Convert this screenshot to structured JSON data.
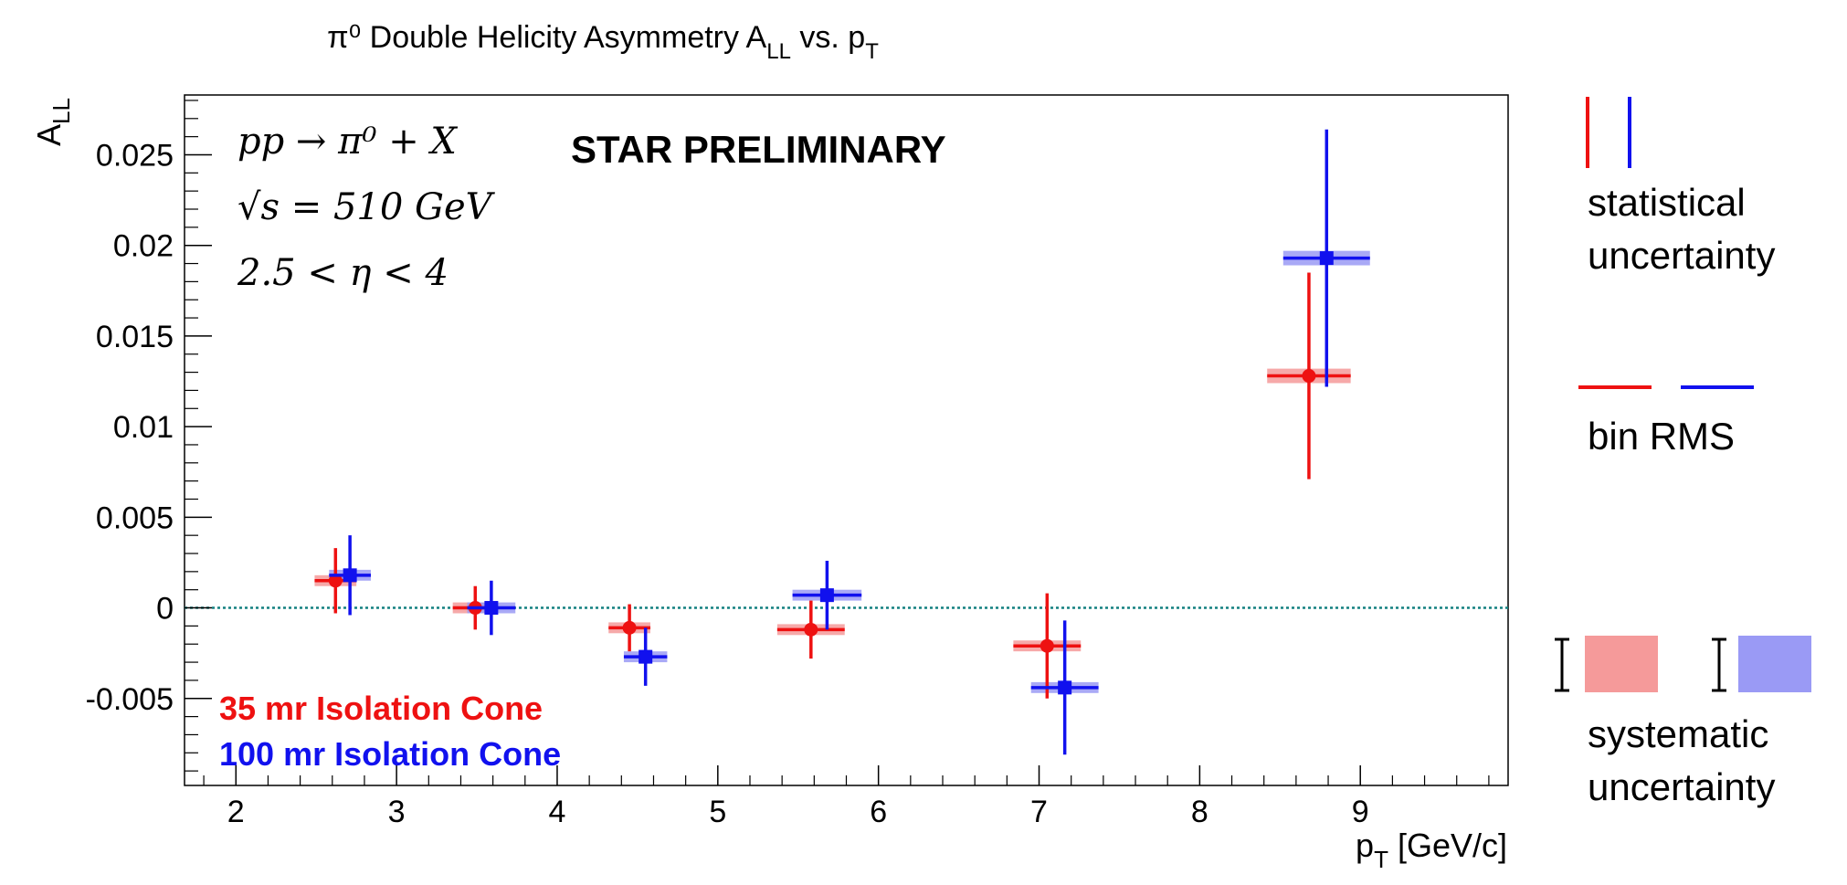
{
  "chart_data": {
    "type": "scatter",
    "title": {
      "main": "π⁰ Double Helicity Asymmetry A",
      "sub": "LL",
      "tail": " vs. p",
      "tail_sub": "T"
    },
    "xlabel": {
      "main": "p",
      "sub": "T",
      "rest": " [GeV/c]"
    },
    "ylabel": {
      "main": "A",
      "sub": "LL"
    },
    "xlim": [
      1.68,
      9.92
    ],
    "ylim": [
      -0.0098,
      0.0283
    ],
    "x_ticks": [
      2,
      3,
      4,
      5,
      6,
      7,
      8,
      9
    ],
    "x_tick_labels": [
      "2",
      "3",
      "4",
      "5",
      "6",
      "7",
      "8",
      "9"
    ],
    "y_ticks": [
      -0.005,
      0,
      0.005,
      0.01,
      0.015,
      0.02,
      0.025
    ],
    "y_tick_labels": [
      "-0.005",
      "0",
      "0.005",
      "0.01",
      "0.015",
      "0.02",
      "0.025"
    ],
    "zero_line": true,
    "grid": false,
    "annotations": {
      "process": "pp → π⁰ + X",
      "energy": "√s = 510 GeV",
      "eta_range": "2.5 < η < 4",
      "preliminary": "STAR PRELIMINARY"
    },
    "series": [
      {
        "name": "35 mr Isolation Cone",
        "color": "#ee1111",
        "sys_color": "#f59a9a",
        "marker": "circle",
        "points": [
          {
            "x": 2.62,
            "y": 0.0015,
            "stat": 0.0018,
            "rms": 0.26,
            "sys": 0.0003
          },
          {
            "x": 3.49,
            "y": 0.0,
            "stat": 0.0012,
            "rms": 0.28,
            "sys": 0.0003
          },
          {
            "x": 4.45,
            "y": -0.0011,
            "stat": 0.0013,
            "rms": 0.26,
            "sys": 0.0003
          },
          {
            "x": 5.58,
            "y": -0.0012,
            "stat": 0.0016,
            "rms": 0.42,
            "sys": 0.0003
          },
          {
            "x": 7.05,
            "y": -0.0021,
            "stat": 0.0029,
            "rms": 0.42,
            "sys": 0.0003
          },
          {
            "x": 8.68,
            "y": 0.0128,
            "stat": 0.0057,
            "rms": 0.52,
            "sys": 0.0004
          }
        ]
      },
      {
        "name": "100 mr Isolation Cone",
        "color": "#1111ee",
        "sys_color": "#9a9af5",
        "marker": "square",
        "points": [
          {
            "x": 2.71,
            "y": 0.0018,
            "stat": 0.0022,
            "rms": 0.26,
            "sys": 0.0003
          },
          {
            "x": 3.59,
            "y": 0.0,
            "stat": 0.0015,
            "rms": 0.3,
            "sys": 0.0003
          },
          {
            "x": 4.55,
            "y": -0.0027,
            "stat": 0.0016,
            "rms": 0.27,
            "sys": 0.0003
          },
          {
            "x": 5.68,
            "y": 0.0007,
            "stat": 0.0019,
            "rms": 0.43,
            "sys": 0.0003
          },
          {
            "x": 7.16,
            "y": -0.0044,
            "stat": 0.0037,
            "rms": 0.42,
            "sys": 0.0003
          },
          {
            "x": 8.79,
            "y": 0.0193,
            "stat": 0.0071,
            "rms": 0.54,
            "sys": 0.0004
          }
        ]
      }
    ],
    "legend": {
      "position": "right",
      "statistical": "statistical",
      "statistical_2": "uncertainty",
      "bin_rms": "bin RMS",
      "systematic": "systematic",
      "systematic_2": "uncertainty"
    }
  }
}
